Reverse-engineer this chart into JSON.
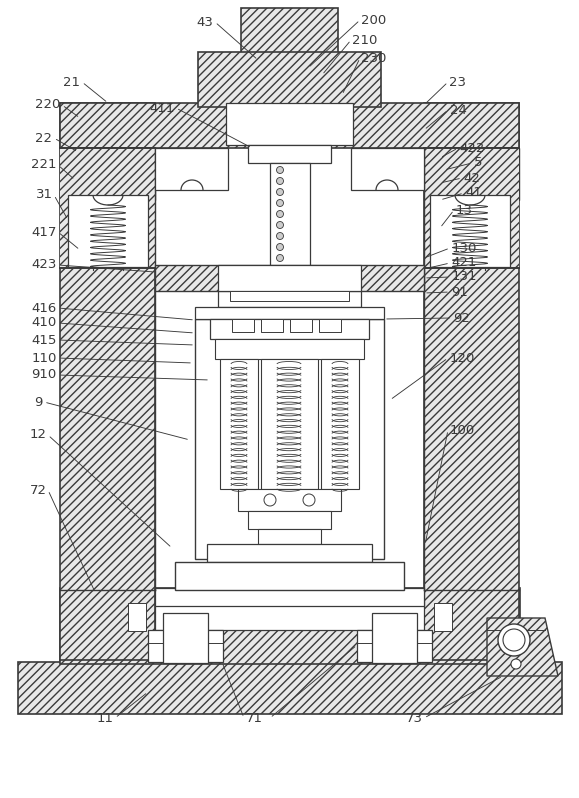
{
  "lc": "#3a3a3a",
  "fs": 9.5,
  "fig_w": 5.79,
  "fig_h": 7.98,
  "dpi": 100,
  "hatch": "////",
  "hatch_fc": "#e8e8e8",
  "white": "#ffffff"
}
